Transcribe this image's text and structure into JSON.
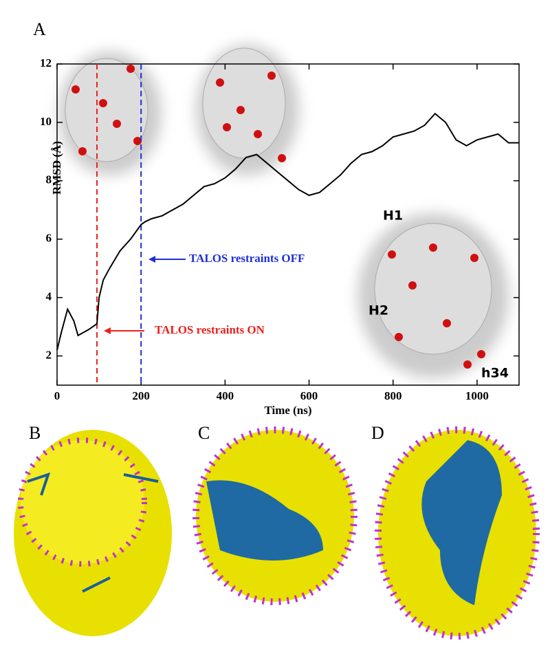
{
  "chart_data": {
    "type": "line",
    "xlabel": "Time   (ns)",
    "ylabel": "RMSD (Å)",
    "x": [
      0,
      10,
      25,
      40,
      50,
      75,
      95,
      100,
      110,
      125,
      150,
      175,
      200,
      210,
      225,
      250,
      275,
      300,
      325,
      350,
      375,
      400,
      425,
      450,
      475,
      500,
      525,
      550,
      575,
      600,
      625,
      650,
      675,
      700,
      725,
      750,
      775,
      800,
      825,
      850,
      875,
      900,
      925,
      950,
      975,
      1000,
      1025,
      1050,
      1075,
      1100
    ],
    "values": [
      2.2,
      2.8,
      3.6,
      3.2,
      2.7,
      2.9,
      3.1,
      4.0,
      4.6,
      5.0,
      5.6,
      6.0,
      6.5,
      6.6,
      6.7,
      6.8,
      7.0,
      7.2,
      7.5,
      7.8,
      7.9,
      8.1,
      8.4,
      8.8,
      8.9,
      8.6,
      8.3,
      8.0,
      7.7,
      7.5,
      7.6,
      7.9,
      8.2,
      8.6,
      8.9,
      9.0,
      9.2,
      9.5,
      9.6,
      9.7,
      9.9,
      10.3,
      10.0,
      9.4,
      9.2,
      9.4,
      9.5,
      9.6,
      9.3,
      9.3
    ],
    "color": "#000000",
    "xlim": [
      0,
      1100
    ],
    "xticks": [
      0,
      200,
      400,
      600,
      800,
      1000
    ],
    "ylim": [
      1,
      12
    ],
    "yticks": [
      2,
      4,
      6,
      8,
      10,
      12
    ],
    "vlines": [
      {
        "x": 95,
        "color": "#e8211c"
      },
      {
        "x": 200,
        "color": "#1f2fd6"
      }
    ],
    "annotations": [
      {
        "text": "TALOS restraints OFF",
        "color": "#1f2fd6"
      },
      {
        "text": "TALOS restraints ON",
        "color": "#e8211c"
      }
    ]
  },
  "figure": {
    "panels": [
      "A",
      "B",
      "C",
      "D"
    ],
    "labels": [
      "H1",
      "H2",
      "h34"
    ]
  }
}
